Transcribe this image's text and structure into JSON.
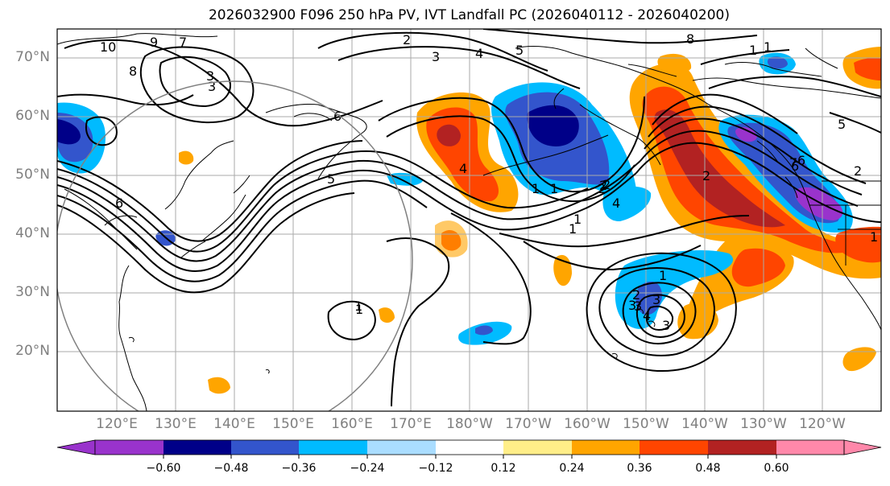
{
  "title": "2026032900 F096 250 hPa PV, IVT Landfall PC (2026040112 - 2026040200)",
  "map": {
    "lat_labels": [
      "70°N",
      "60°N",
      "50°N",
      "40°N",
      "30°N",
      "20°N"
    ],
    "lon_labels": [
      "120°E",
      "130°E",
      "140°E",
      "150°E",
      "160°E",
      "170°E",
      "180°W",
      "170°W",
      "160°W",
      "150°W",
      "140°W",
      "130°W",
      "120°W"
    ],
    "contour_labels": [
      "10",
      "9",
      "8",
      "7",
      "6",
      "5",
      "4",
      "3",
      "2",
      "1",
      "1",
      "2",
      "3",
      "4",
      "5",
      "6",
      "7",
      "8",
      "1",
      "2",
      "3",
      "1",
      "6",
      "4",
      "2",
      "4",
      "3",
      "2",
      "1",
      "1",
      "2",
      "3",
      "1",
      "5",
      "6",
      "1",
      "2",
      "3",
      "1",
      "3",
      "1"
    ],
    "colors": {
      "background": "#ffffff",
      "grid": "#aaaaaa",
      "coastline": "#000000",
      "circle": "#808080",
      "contour": "#000000"
    }
  },
  "colorbar": {
    "ticks": [
      "−0.60",
      "−0.48",
      "−0.36",
      "−0.24",
      "−0.12",
      "0.12",
      "0.24",
      "0.36",
      "0.48",
      "0.60"
    ],
    "colors": [
      "#9933cc",
      "#000088",
      "#3355cc",
      "#00bbff",
      "#aaddff",
      "#ffffff",
      "#ffee88",
      "#ffa500",
      "#ff4500",
      "#b22222",
      "#ff88aa"
    ],
    "extend": "both"
  }
}
